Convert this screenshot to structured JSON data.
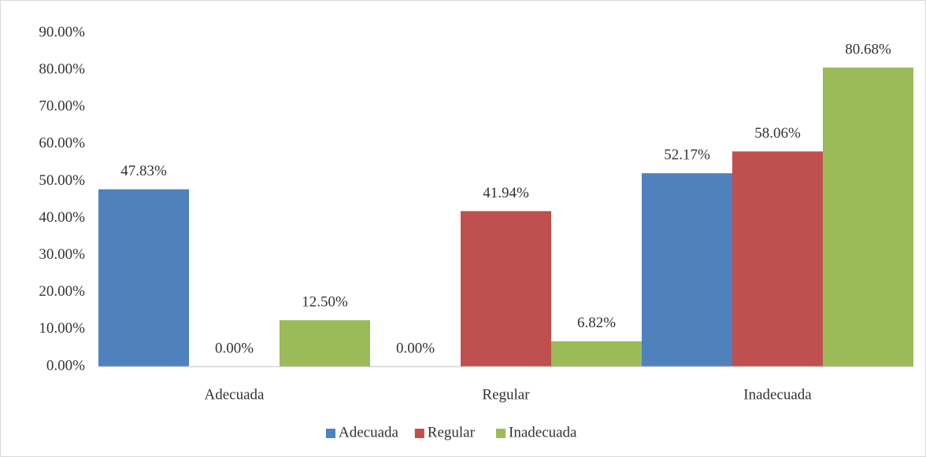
{
  "chart_data": {
    "type": "bar",
    "categories": [
      "Adecuada",
      "Regular",
      "Inadecuada"
    ],
    "series": [
      {
        "name": "Adecuada",
        "color": "#4f81bd",
        "values": [
          47.83,
          0,
          52.17
        ],
        "value_labels": [
          "47.83%",
          "0.00%",
          "52.17%"
        ]
      },
      {
        "name": "Regular",
        "color": "#c0504d",
        "values": [
          0,
          41.94,
          58.06
        ],
        "value_labels": [
          "0.00%",
          "41.94%",
          "58.06%"
        ]
      },
      {
        "name": "Inadecuada",
        "color": "#9bbb59",
        "values": [
          12.5,
          6.82,
          80.68
        ],
        "value_labels": [
          "12.50%",
          "6.82%",
          "80.68%"
        ]
      }
    ],
    "ylim": [
      0,
      90
    ],
    "yticks": [
      {
        "value": 0,
        "label": "0.00%"
      },
      {
        "value": 10,
        "label": "10.00%"
      },
      {
        "value": 20,
        "label": "20.00%"
      },
      {
        "value": 30,
        "label": "30.00%"
      },
      {
        "value": 40,
        "label": "40.00%"
      },
      {
        "value": 50,
        "label": "50.00%"
      },
      {
        "value": 60,
        "label": "60.00%"
      },
      {
        "value": 70,
        "label": "70.00%"
      },
      {
        "value": 80,
        "label": "80.00%"
      },
      {
        "value": 90,
        "label": "90.00%"
      }
    ],
    "grid": false,
    "legend": "bottom"
  }
}
